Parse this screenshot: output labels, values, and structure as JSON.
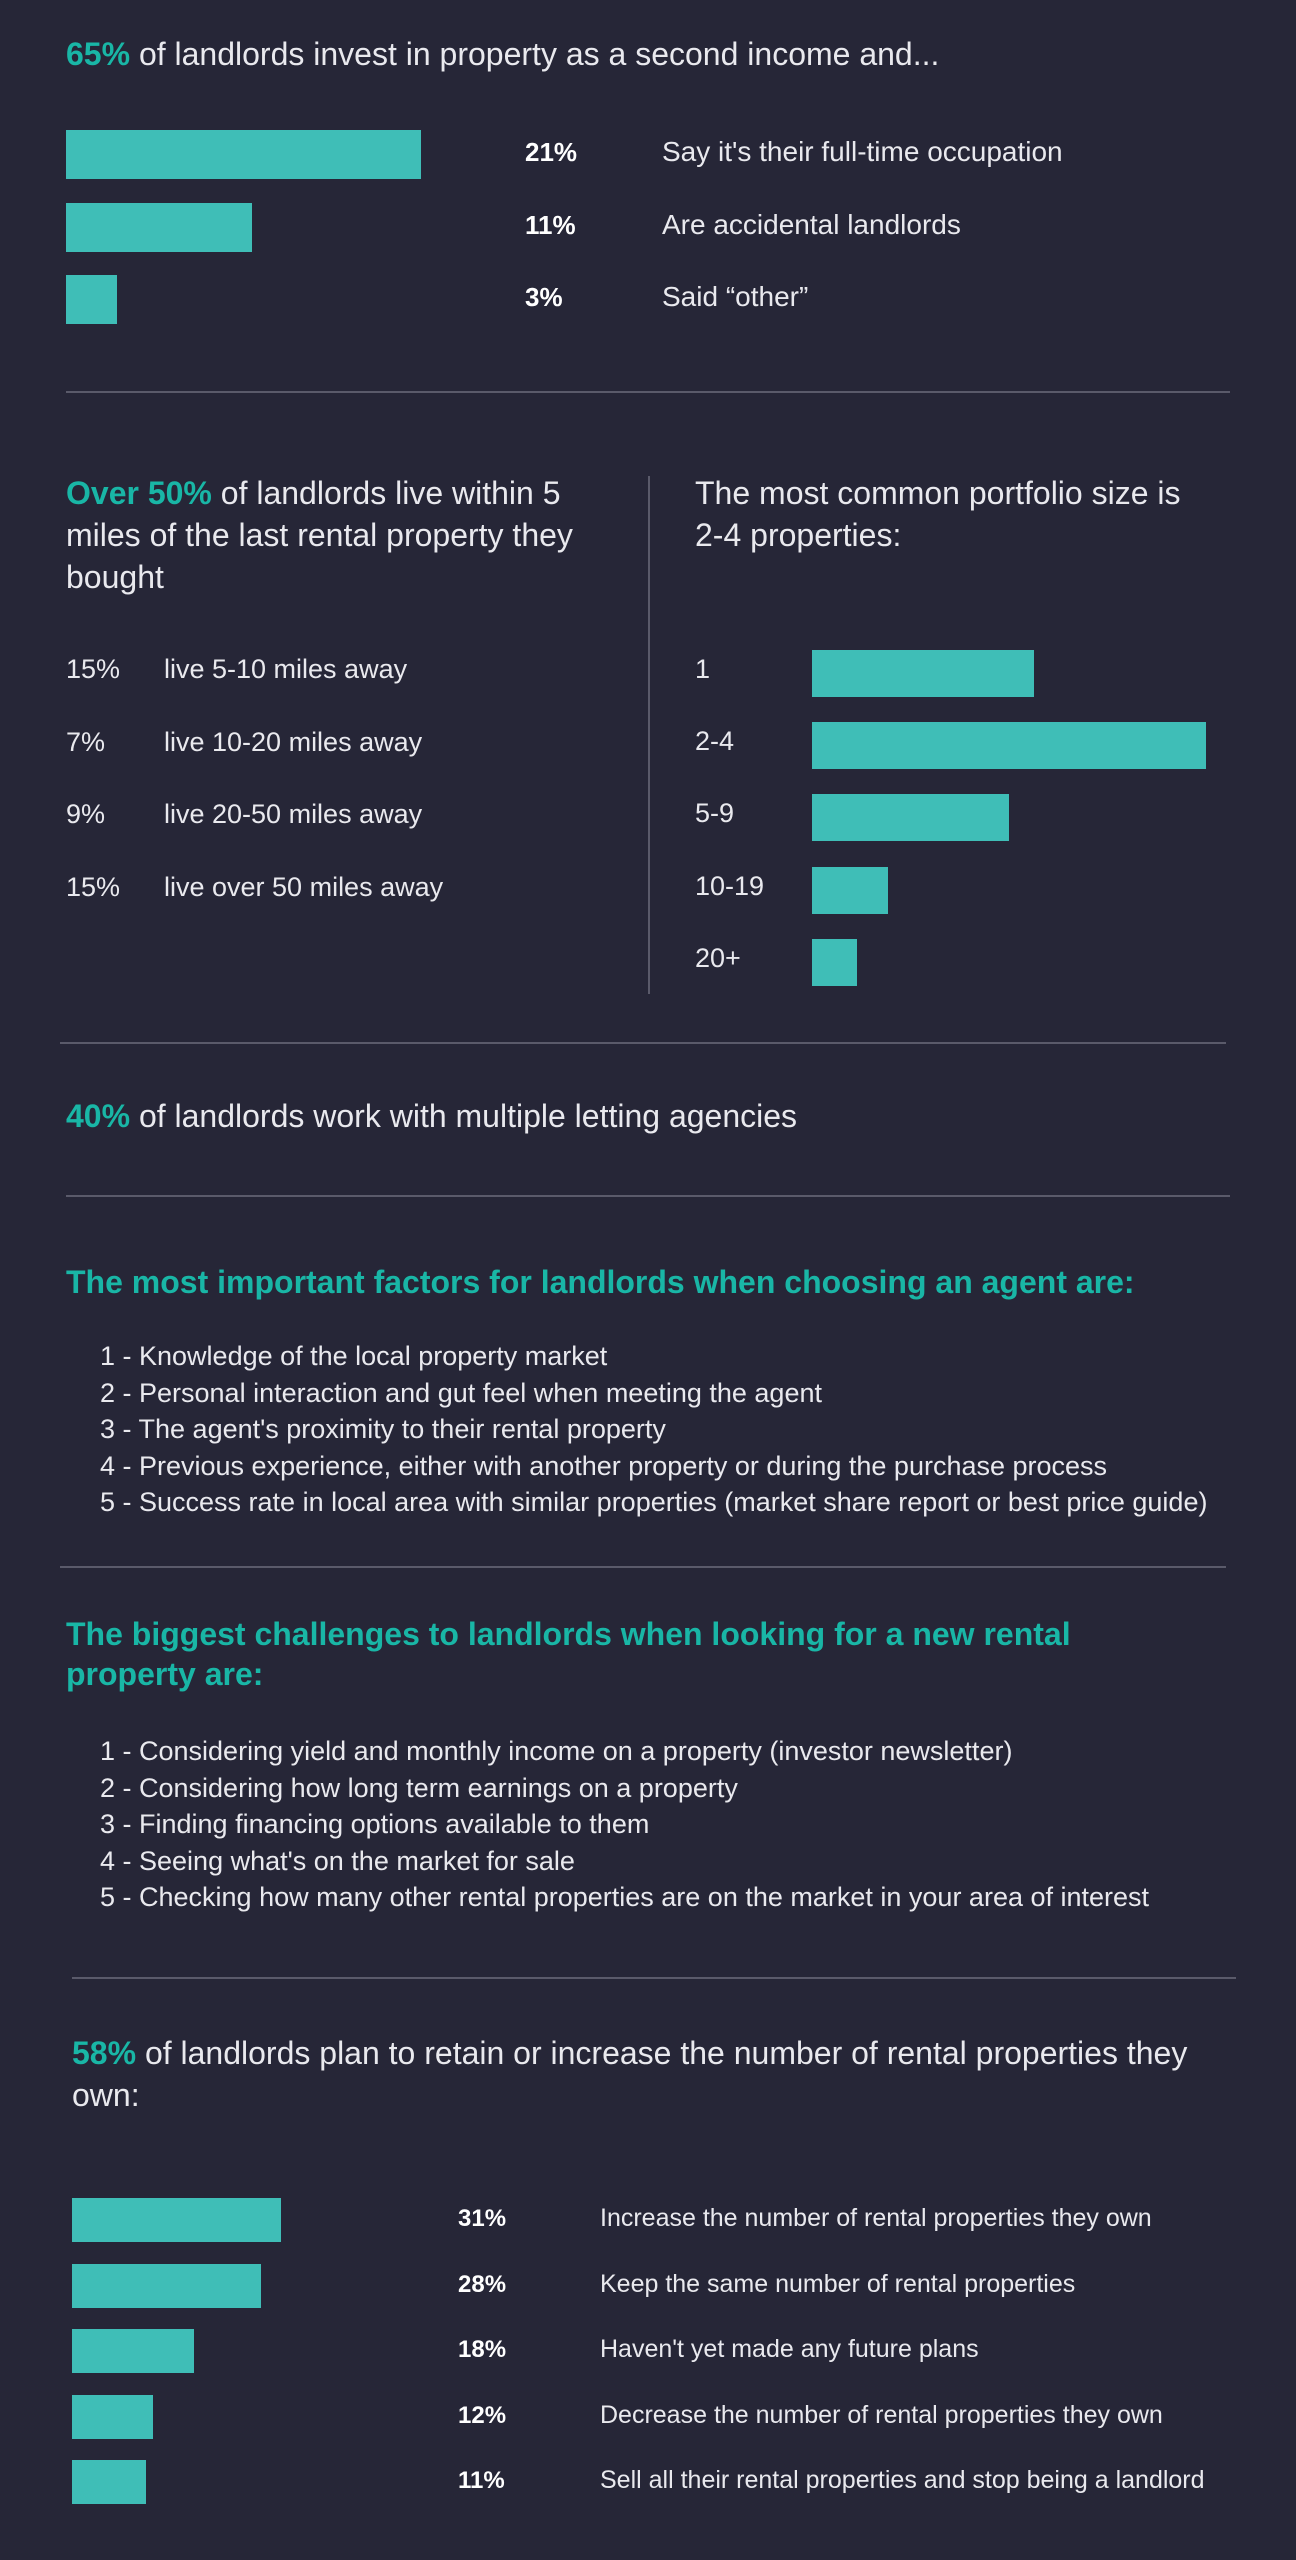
{
  "section1": {
    "highlight": "65%",
    "text": " of landlords invest in property as a second income and...",
    "chart_data": {
      "type": "bar",
      "orientation": "horizontal",
      "categories": [
        "Say it's their full-time occupation",
        "Are accidental landlords",
        "Said “other”"
      ],
      "values": [
        21,
        11,
        3
      ],
      "value_labels": [
        "21%",
        "11%",
        "3%"
      ],
      "unit": "%"
    }
  },
  "section2": {
    "left": {
      "highlight": "Over 50%",
      "text": " of landlords live within 5 miles of the last rental property they bought",
      "rows": [
        {
          "pct": "15%",
          "label": "live 5-10 miles away"
        },
        {
          "pct": "7%",
          "label": "live 10-20 miles away"
        },
        {
          "pct": "9%",
          "label": "live 20-50 miles away"
        },
        {
          "pct": "15%",
          "label": "live over 50 miles away"
        }
      ]
    },
    "right": {
      "title": "The most common portfolio size is 2-4 properties:",
      "chart_data": {
        "type": "bar",
        "orientation": "horizontal",
        "categories": [
          "1",
          "2-4",
          "5-9",
          "10-19",
          "20+"
        ],
        "values": [
          22,
          39,
          19.5,
          7.5,
          4.5
        ]
      }
    }
  },
  "section3": {
    "highlight": "40%",
    "text": " of landlords work with multiple letting agencies"
  },
  "section4": {
    "heading": "The most important factors for landlords when choosing an agent are:",
    "items": [
      "1 - Knowledge of the local property market",
      "2 - Personal interaction and gut feel when meeting the agent",
      "3 - The agent's proximity to their rental property",
      "4 - Previous experience, either with another property or during the purchase process",
      "5 - Success rate in local area with similar properties (market share report or best price guide)"
    ]
  },
  "section5": {
    "heading": "The biggest challenges to landlords when looking for a new rental property are:",
    "items": [
      "1 - Considering yield and monthly income on a property (investor newsletter)",
      "2 - Considering how long term earnings on a property",
      "3 - Finding financing options available to them",
      "4 - Seeing what's on the market for sale",
      "5 - Checking how many other rental properties are on the market in your area of interest"
    ]
  },
  "section6": {
    "highlight": "58%",
    "text": " of landlords plan to retain or increase the number of rental properties they own:",
    "chart_data": {
      "type": "bar",
      "orientation": "horizontal",
      "categories": [
        "Increase the number of rental properties they own",
        "Keep the same number of rental properties",
        "Haven't yet made any future plans",
        "Decrease the number of rental properties they own",
        "Sell all their rental properties and stop being a landlord"
      ],
      "values": [
        31,
        28,
        18,
        12,
        11
      ],
      "value_labels": [
        "31%",
        "28%",
        "18%",
        "12%",
        "11%"
      ],
      "unit": "%"
    }
  },
  "colors": {
    "background": "#262637",
    "accent": "#19b6a6",
    "bar": "#3fbeb7",
    "rule": "#5a5a6a"
  }
}
